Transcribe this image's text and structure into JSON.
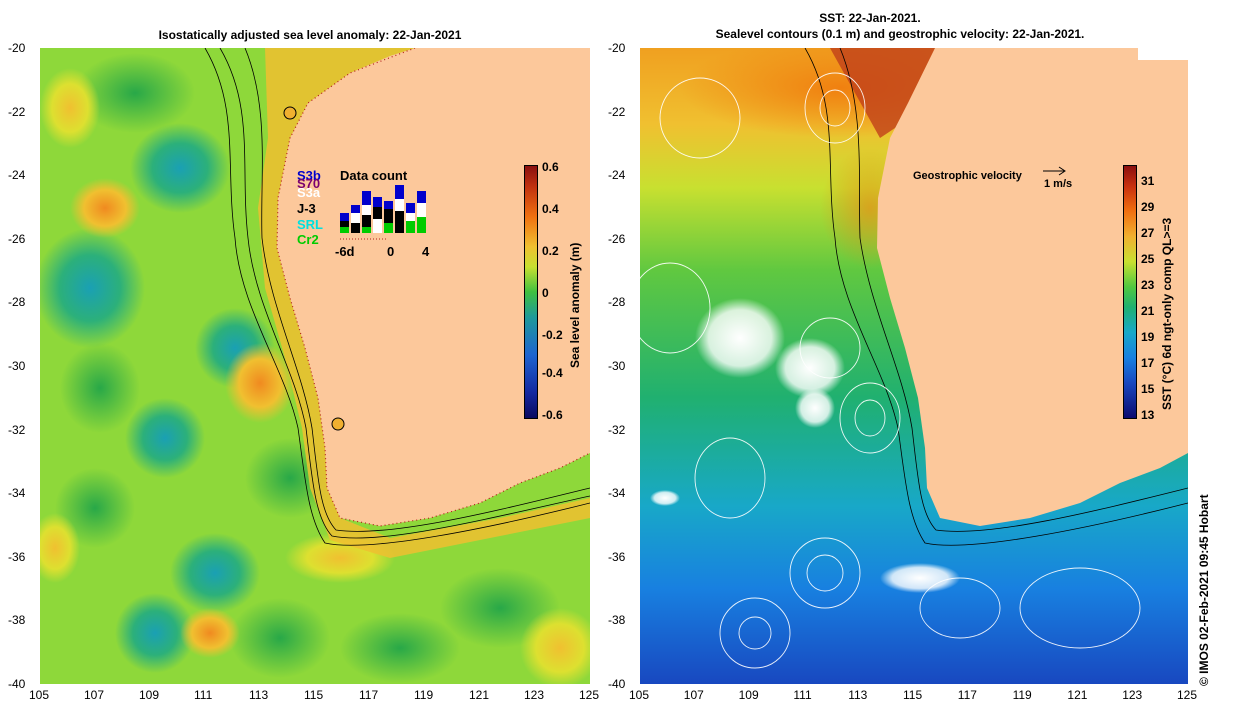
{
  "left_panel": {
    "title": "Isostatically adjusted sea level anomaly: 22-Jan-2021",
    "colorbar": {
      "label": "Sea level anomaly (m)",
      "ticks": [
        "0.6",
        "0.4",
        "0.2",
        "0",
        "-0.2",
        "-0.4",
        "-0.6"
      ]
    },
    "inset": {
      "title": "Data count",
      "satellites": [
        {
          "name": "S3b",
          "color": "#0000cc"
        },
        {
          "name": "S3a",
          "color": "#ffffff"
        },
        {
          "name": "S70",
          "color": "#7a0070"
        },
        {
          "name": "J-3",
          "color": "#000000"
        },
        {
          "name": "SRL",
          "color": "#00e0e0"
        },
        {
          "name": "Cr2",
          "color": "#00cc00"
        }
      ],
      "x_ticks": [
        "-6d",
        "0",
        "4"
      ]
    }
  },
  "right_panel": {
    "title_line1": "SST: 22-Jan-2021.",
    "title_line2": "Sealevel contours (0.1 m) and geostrophic velocity: 22-Jan-2021.",
    "colorbar": {
      "label": "SST (°C) 6d ngt-only comp QL>=3",
      "ticks": [
        "31",
        "29",
        "27",
        "25",
        "23",
        "21",
        "19",
        "17",
        "15",
        "13"
      ]
    },
    "velocity_legend": {
      "label": "Geostrophic velocity",
      "scale": "1 m/s"
    }
  },
  "axes": {
    "x_ticks": [
      "105",
      "107",
      "109",
      "111",
      "113",
      "115",
      "117",
      "119",
      "121",
      "123",
      "125"
    ],
    "y_ticks": [
      "-20",
      "-22",
      "-24",
      "-26",
      "-28",
      "-30",
      "-32",
      "-34",
      "-36",
      "-38",
      "-40"
    ]
  },
  "colors": {
    "land": "#fcc89b",
    "slа_low": "#1e46b4",
    "sla_high": "#e87810"
  },
  "copyright": "© IMOS 02-Feb-2021 09:45 Hobart"
}
